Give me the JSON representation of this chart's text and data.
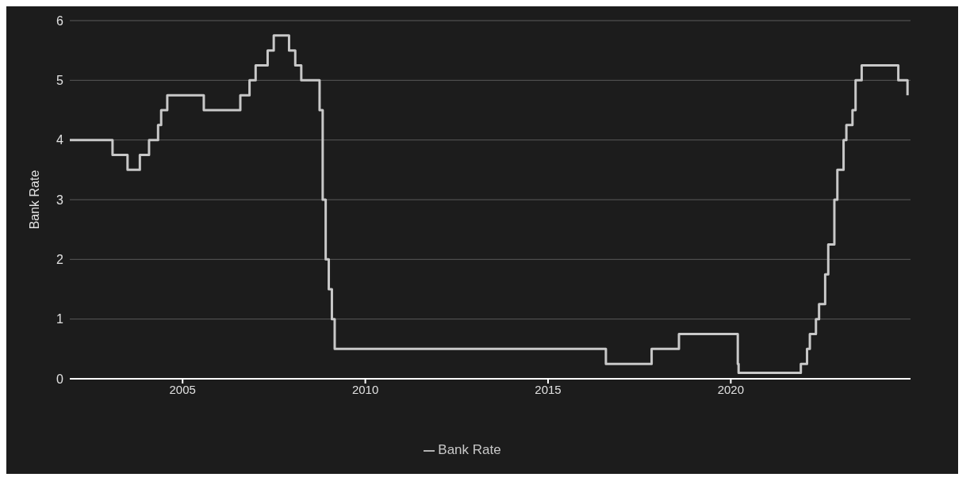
{
  "chart_data": {
    "type": "step",
    "ylabel": "Bank Rate",
    "x": [
      "2001-12",
      "2003-02",
      "2003-07",
      "2003-11",
      "2004-02",
      "2004-05",
      "2004-06",
      "2004-08",
      "2005-08",
      "2006-08",
      "2006-11",
      "2007-01",
      "2007-05",
      "2007-07",
      "2007-12",
      "2008-02",
      "2008-04",
      "2008-10",
      "2008-11",
      "2008-12",
      "2009-01",
      "2009-02",
      "2009-03",
      "2016-08",
      "2017-11",
      "2018-08",
      "2020-03-11",
      "2020-03-19",
      "2021-12",
      "2022-02",
      "2022-03",
      "2022-05",
      "2022-06",
      "2022-08",
      "2022-09",
      "2022-11",
      "2022-12",
      "2023-02",
      "2023-03",
      "2023-05",
      "2023-06",
      "2023-08",
      "2024-08",
      "2024-11"
    ],
    "series": [
      {
        "name": "Bank Rate",
        "color": "#c8c8c8",
        "values": [
          4,
          3.75,
          3.5,
          3.75,
          4,
          4.25,
          4.5,
          4.75,
          4.5,
          4.75,
          5,
          5.25,
          5.5,
          5.75,
          5.5,
          5.25,
          5,
          4.5,
          3,
          2,
          1.5,
          1,
          0.5,
          0.25,
          0.5,
          0.75,
          0.25,
          0.1,
          0.25,
          0.5,
          0.75,
          1,
          1.25,
          1.75,
          2.25,
          3,
          3.5,
          4,
          4.25,
          4.5,
          5,
          5.25,
          5,
          4.75
        ]
      }
    ],
    "xlim": [
      "2001-12",
      "2024-12"
    ],
    "xticks": [
      "2005",
      "2010",
      "2015",
      "2020"
    ],
    "ylim": [
      0,
      6
    ],
    "yticks": [
      0,
      1,
      2,
      3,
      4,
      5,
      6
    ],
    "grid": "y",
    "legend": "bottom",
    "marker": "none",
    "line_style": "solid"
  }
}
